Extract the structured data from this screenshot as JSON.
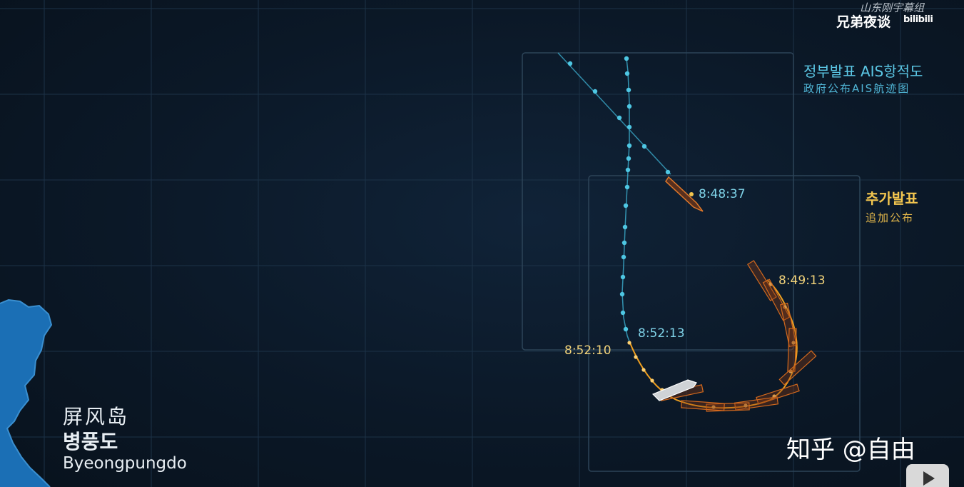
{
  "watermark": {
    "channel": "兄弟夜谈",
    "subs_group": "山东刚宇幕组",
    "platform": "bilibili",
    "zhihu": "知乎 @自由"
  },
  "legend": {
    "gov_ais_ko": "정부발표 AIS항적도",
    "gov_ais_zh": "政府公布AIS航迹图",
    "added_ko": "추가발표",
    "added_zh": "追加公布"
  },
  "timestamps": {
    "t1": "8:48:37",
    "t2": "8:49:13",
    "t3": "8:52:13",
    "t4": "8:52:10"
  },
  "island": {
    "name_zh": "屏风岛",
    "name_ko": "병풍도",
    "name_en": "Byeongpungdo"
  },
  "colors": {
    "ais_track": "#4ec7e3",
    "added_track": "#f0a020",
    "ship_outline": "#d2691e",
    "grid": "#1c3247",
    "island": "#1b6fb5"
  }
}
